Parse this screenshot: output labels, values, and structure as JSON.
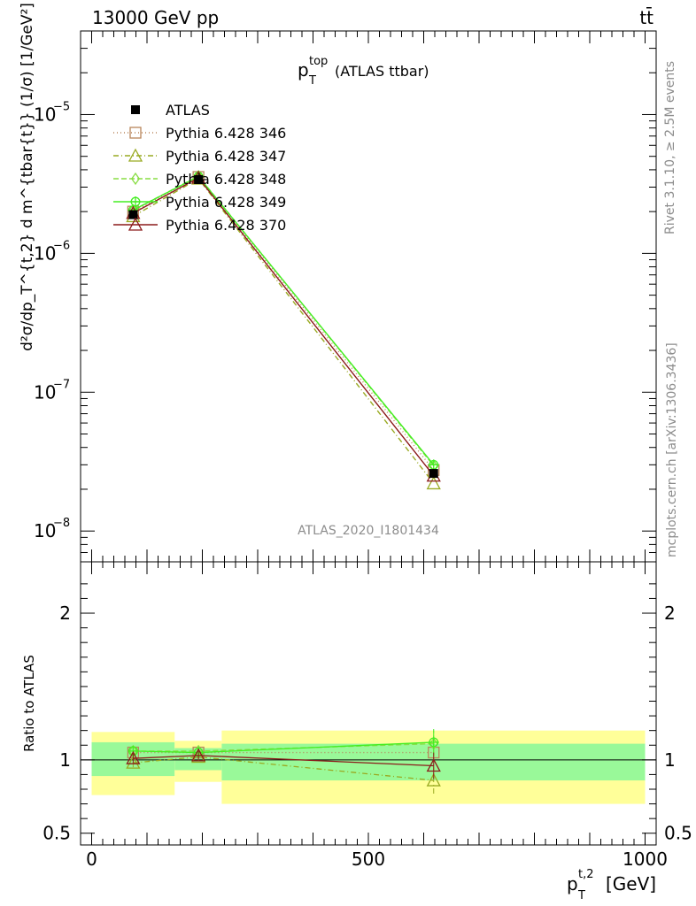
{
  "header": {
    "left": "13000 GeV pp",
    "right": "tt̄"
  },
  "side_labels": {
    "rivet": "Rivet 3.1.10, ≥ 2.5M events",
    "mcplots": "mcplots.cern.ch [arXiv:1306.3436]"
  },
  "watermark": "ATLAS_2020_I1801434",
  "title": {
    "main": "p",
    "sup": "top",
    "sub": "T",
    "suffix": "(ATLAS ttbar)"
  },
  "ylabel_main": "d²σ/dp_T^{t,2} d m^{tbar{t}} (1/σ) [1/GeV²]",
  "ylabel_ratio": "Ratio to ATLAS",
  "xlabel": {
    "main": "p",
    "sup": "t,2",
    "sub": "T",
    "unit": "[GeV]"
  },
  "legend": [
    {
      "name": "ATLAS",
      "color": "#000000",
      "marker": "filled-square",
      "dash": "none"
    },
    {
      "name": "Pythia 6.428 346",
      "color": "#b8865b",
      "marker": "open-square",
      "dash": "1,3"
    },
    {
      "name": "Pythia 6.428 347",
      "color": "#99aa22",
      "marker": "open-triangle",
      "dash": "6,3,1,3"
    },
    {
      "name": "Pythia 6.428 348",
      "color": "#88dd44",
      "marker": "open-diamond",
      "dash": "6,3"
    },
    {
      "name": "Pythia 6.428 349",
      "color": "#44ee22",
      "marker": "open-circle-plus",
      "dash": "none"
    },
    {
      "name": "Pythia 6.428 370",
      "color": "#8b1a1a",
      "marker": "open-triangle",
      "dash": "none"
    }
  ],
  "chart_data": {
    "type": "line",
    "x_axis": {
      "range": [
        -20,
        1020
      ],
      "ticks": [
        0,
        500,
        1000
      ],
      "tick_labels": [
        "0",
        "500",
        "1000"
      ]
    },
    "y_axis_main": {
      "scale": "log",
      "range": [
        6e-09,
        4e-05
      ],
      "ticks": [
        1e-08,
        1e-07,
        1e-06,
        1e-05
      ],
      "tick_labels": [
        {
          "base": "10",
          "exp": "−8"
        },
        {
          "base": "10",
          "exp": "−7"
        },
        {
          "base": "10",
          "exp": "−6"
        },
        {
          "base": "10",
          "exp": "−5"
        }
      ]
    },
    "y_axis_ratio": {
      "scale": "linear",
      "range": [
        0.42,
        2.35
      ],
      "ticks": [
        0.5,
        1,
        2
      ],
      "tick_labels": [
        "0.5",
        "1",
        "2"
      ]
    },
    "bins": [
      [
        0,
        150
      ],
      [
        150,
        235
      ],
      [
        235,
        1000
      ]
    ],
    "x": [
      75,
      193,
      618
    ],
    "reference": {
      "name": "ATLAS",
      "values": [
        1.9e-06,
        3.4e-06,
        2.6e-08
      ]
    },
    "uncertainty_bands": {
      "stat": [
        [
          0.89,
          1.12
        ],
        [
          0.93,
          1.08
        ],
        [
          0.86,
          1.11
        ]
      ],
      "total": [
        [
          0.76,
          1.19
        ],
        [
          0.85,
          1.13
        ],
        [
          0.7,
          1.2
        ]
      ]
    },
    "series": [
      {
        "name": "Pythia 6.428 346",
        "values": [
          2e-06,
          3.55e-06,
          2.75e-08
        ],
        "ratio": [
          1.05,
          1.05,
          1.05
        ]
      },
      {
        "name": "Pythia 6.428 347",
        "values": [
          1.85e-06,
          3.45e-06,
          2.2e-08
        ],
        "ratio": [
          0.98,
          1.02,
          0.86
        ]
      },
      {
        "name": "Pythia 6.428 348",
        "values": [
          2.05e-06,
          3.6e-06,
          2.95e-08
        ],
        "ratio": [
          1.06,
          1.06,
          1.11
        ]
      },
      {
        "name": "Pythia 6.428 349",
        "values": [
          2.05e-06,
          3.58e-06,
          3e-08
        ],
        "ratio": [
          1.06,
          1.05,
          1.12
        ]
      },
      {
        "name": "Pythia 6.428 370",
        "values": [
          1.95e-06,
          3.5e-06,
          2.5e-08
        ],
        "ratio": [
          1.01,
          1.03,
          0.96
        ]
      }
    ],
    "ratio_errors": [
      0.03,
      0.03,
      0.09
    ]
  }
}
